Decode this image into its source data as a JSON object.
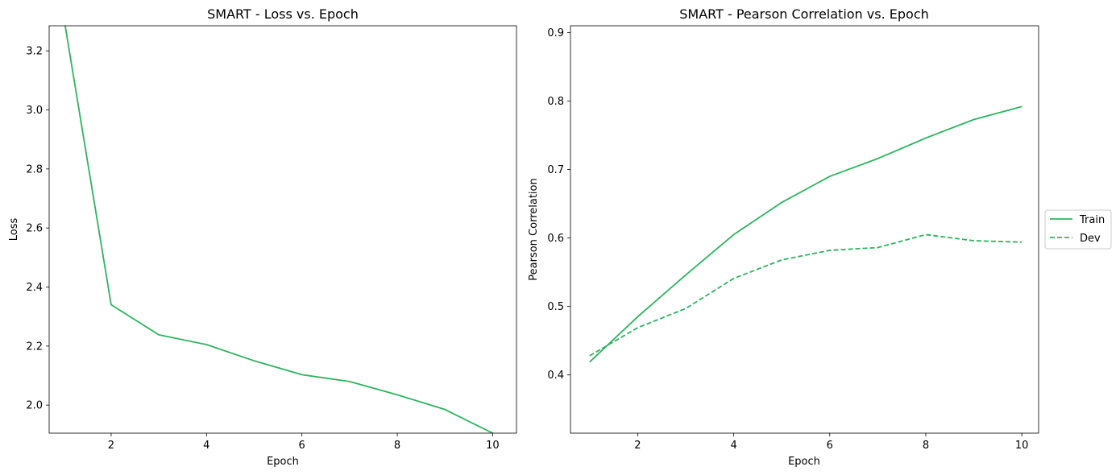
{
  "chart_data": [
    {
      "type": "line",
      "title": "SMART - Loss vs. Epoch",
      "xlabel": "Epoch",
      "ylabel": "Loss",
      "xlim": [
        0.7,
        10.5
      ],
      "ylim": [
        1.905,
        3.285
      ],
      "xticks": [
        2,
        4,
        6,
        8,
        10
      ],
      "yticks": [
        2.0,
        2.2,
        2.4,
        2.6,
        2.8,
        3.0,
        3.2
      ],
      "color": "#2db45e",
      "series": [
        {
          "name": "Loss",
          "x": [
            1,
            2,
            3,
            4,
            5,
            6,
            7,
            8,
            9,
            10
          ],
          "values": [
            3.32,
            2.34,
            2.238,
            2.205,
            2.15,
            2.103,
            2.08,
            2.035,
            1.985,
            1.905
          ],
          "dash": "solid"
        }
      ]
    },
    {
      "type": "line",
      "title": "SMART - Pearson Correlation vs. Epoch",
      "xlabel": "Epoch",
      "ylabel": "Pearson Correlation",
      "xlim": [
        0.6,
        10.35
      ],
      "ylim": [
        0.315,
        0.91
      ],
      "xticks": [
        2,
        4,
        6,
        8,
        10
      ],
      "yticks": [
        0.4,
        0.5,
        0.6,
        0.7,
        0.8,
        0.9
      ],
      "color": "#2db45e",
      "legend": {
        "position": "outside-right",
        "entries": [
          "Train",
          "Dev"
        ]
      },
      "series": [
        {
          "name": "Train",
          "x": [
            1,
            2,
            3,
            4,
            5,
            6,
            7,
            8,
            9,
            10
          ],
          "values": [
            0.419,
            0.485,
            0.546,
            0.605,
            0.652,
            0.69,
            0.716,
            0.746,
            0.773,
            0.792
          ],
          "dash": "solid"
        },
        {
          "name": "Dev",
          "x": [
            1,
            2,
            3,
            4,
            5,
            6,
            7,
            8,
            9,
            10
          ],
          "values": [
            0.428,
            0.469,
            0.497,
            0.541,
            0.568,
            0.582,
            0.586,
            0.605,
            0.596,
            0.594
          ],
          "dash": "dashed"
        }
      ]
    }
  ]
}
